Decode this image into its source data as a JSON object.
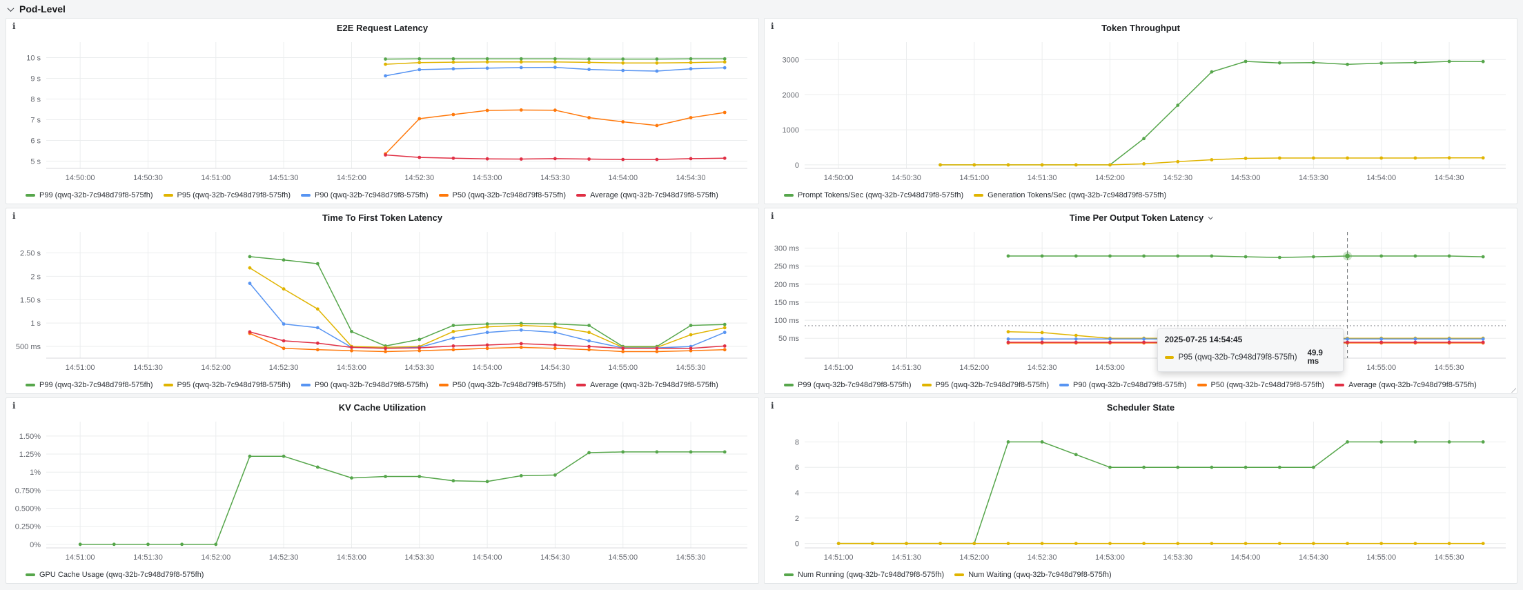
{
  "section": {
    "title": "Pod-Level"
  },
  "colors": {
    "green": "#56a64b",
    "yellow": "#e0b400",
    "blue": "#5794f2",
    "orange": "#ff780a",
    "red": "#e02f44"
  },
  "panels": [
    {
      "id": "e2e-request-latency",
      "title": "E2E Request Latency",
      "x_range": [
        "14:49:45",
        "14:54:55"
      ],
      "x_ticks": [
        "14:50:00",
        "14:50:30",
        "14:51:00",
        "14:51:30",
        "14:52:00",
        "14:52:30",
        "14:53:00",
        "14:53:30",
        "14:54:00",
        "14:54:30"
      ],
      "y_range": [
        4.65,
        10.75
      ],
      "y_ticks": [
        {
          "v": 10,
          "label": "10 s"
        },
        {
          "v": 9,
          "label": "9 s"
        },
        {
          "v": 8,
          "label": "8 s"
        },
        {
          "v": 7,
          "label": "7 s"
        },
        {
          "v": 6,
          "label": "6 s"
        },
        {
          "v": 5,
          "label": "5 s"
        }
      ],
      "chart_data": {
        "type": "line",
        "unit": "seconds",
        "series": [
          {
            "name": "P99 (qwq-32b-7c948d79f8-575fh)",
            "color": "#56a64b",
            "start": "14:52:15",
            "step_s": 15,
            "values": [
              9.93,
              9.94,
              9.94,
              9.94,
              9.94,
              9.94,
              9.93,
              9.93,
              9.93,
              9.94,
              9.94
            ]
          },
          {
            "name": "P95 (qwq-32b-7c948d79f8-575fh)",
            "color": "#e0b400",
            "start": "14:52:15",
            "step_s": 15,
            "values": [
              9.68,
              9.76,
              9.78,
              9.79,
              9.79,
              9.79,
              9.77,
              9.74,
              9.74,
              9.76,
              9.79
            ]
          },
          {
            "name": "P90 (qwq-32b-7c948d79f8-575fh)",
            "color": "#5794f2",
            "start": "14:52:15",
            "step_s": 15,
            "values": [
              9.12,
              9.42,
              9.46,
              9.49,
              9.52,
              9.53,
              9.43,
              9.38,
              9.35,
              9.46,
              9.51
            ]
          },
          {
            "name": "P50 (qwq-32b-7c948d79f8-575fh)",
            "color": "#ff780a",
            "start": "14:52:15",
            "step_s": 15,
            "values": [
              5.35,
              7.05,
              7.25,
              7.45,
              7.47,
              7.46,
              7.1,
              6.9,
              6.72,
              7.1,
              7.35
            ]
          },
          {
            "name": "Average (qwq-32b-7c948d79f8-575fh)",
            "color": "#e02f44",
            "start": "14:52:15",
            "step_s": 15,
            "values": [
              5.3,
              5.18,
              5.14,
              5.11,
              5.1,
              5.12,
              5.1,
              5.08,
              5.08,
              5.12,
              5.14
            ]
          }
        ]
      }
    },
    {
      "id": "token-throughput",
      "title": "Token Throughput",
      "x_range": [
        "14:49:45",
        "14:54:55"
      ],
      "x_ticks": [
        "14:50:00",
        "14:50:30",
        "14:51:00",
        "14:51:30",
        "14:52:00",
        "14:52:30",
        "14:53:00",
        "14:53:30",
        "14:54:00",
        "14:54:30"
      ],
      "y_range": [
        -100,
        3500
      ],
      "y_ticks": [
        {
          "v": 3000,
          "label": "3000"
        },
        {
          "v": 2000,
          "label": "2000"
        },
        {
          "v": 1000,
          "label": "1000"
        },
        {
          "v": 0,
          "label": "0"
        }
      ],
      "chart_data": {
        "type": "line",
        "unit": "tokens/sec",
        "series": [
          {
            "name": "Prompt Tokens/Sec (qwq-32b-7c948d79f8-575fh)",
            "color": "#56a64b",
            "start": "14:50:45",
            "step_s": 15,
            "values": [
              0,
              0,
              0,
              0,
              0,
              0,
              750,
              1700,
              2650,
              2950,
              2905,
              2915,
              2865,
              2900,
              2915,
              2950,
              2945
            ]
          },
          {
            "name": "Generation Tokens/Sec (qwq-32b-7c948d79f8-575fh)",
            "color": "#e0b400",
            "start": "14:50:45",
            "step_s": 15,
            "values": [
              0,
              0,
              0,
              0,
              0,
              0,
              30,
              90,
              145,
              185,
              195,
              195,
              195,
              195,
              195,
              200,
              200
            ]
          }
        ]
      }
    },
    {
      "id": "ttft-latency",
      "title": "Time To First Token Latency",
      "x_range": [
        "14:50:45",
        "14:55:55"
      ],
      "x_ticks": [
        "14:51:00",
        "14:51:30",
        "14:52:00",
        "14:52:30",
        "14:53:00",
        "14:53:30",
        "14:54:00",
        "14:54:30",
        "14:55:00",
        "14:55:30"
      ],
      "y_range": [
        0.25,
        2.95
      ],
      "y_ticks": [
        {
          "v": 2.5,
          "label": "2.50 s"
        },
        {
          "v": 2,
          "label": "2 s"
        },
        {
          "v": 1.5,
          "label": "1.50 s"
        },
        {
          "v": 1,
          "label": "1 s"
        },
        {
          "v": 0.5,
          "label": "500 ms"
        }
      ],
      "chart_data": {
        "type": "line",
        "unit": "seconds",
        "series": [
          {
            "name": "P99 (qwq-32b-7c948d79f8-575fh)",
            "color": "#56a64b",
            "start": "14:52:15",
            "step_s": 15,
            "values": [
              2.42,
              2.35,
              2.27,
              0.82,
              0.51,
              0.65,
              0.95,
              0.98,
              0.99,
              0.98,
              0.95,
              0.5,
              0.5,
              0.95,
              0.97
            ]
          },
          {
            "name": "P95 (qwq-32b-7c948d79f8-575fh)",
            "color": "#e0b400",
            "start": "14:52:15",
            "step_s": 15,
            "values": [
              2.18,
              1.73,
              1.3,
              0.5,
              0.48,
              0.5,
              0.82,
              0.92,
              0.95,
              0.92,
              0.8,
              0.48,
              0.48,
              0.75,
              0.9
            ]
          },
          {
            "name": "P90 (qwq-32b-7c948d79f8-575fh)",
            "color": "#5794f2",
            "start": "14:52:15",
            "step_s": 15,
            "values": [
              1.85,
              0.98,
              0.9,
              0.48,
              0.46,
              0.48,
              0.68,
              0.8,
              0.85,
              0.8,
              0.62,
              0.47,
              0.47,
              0.5,
              0.8
            ]
          },
          {
            "name": "P50 (qwq-32b-7c948d79f8-575fh)",
            "color": "#ff780a",
            "start": "14:52:15",
            "step_s": 15,
            "values": [
              0.78,
              0.46,
              0.43,
              0.41,
              0.39,
              0.41,
              0.43,
              0.46,
              0.48,
              0.46,
              0.43,
              0.39,
              0.39,
              0.41,
              0.43
            ]
          },
          {
            "name": "Average (qwq-32b-7c948d79f8-575fh)",
            "color": "#e02f44",
            "start": "14:52:15",
            "step_s": 15,
            "values": [
              0.81,
              0.62,
              0.57,
              0.48,
              0.46,
              0.47,
              0.51,
              0.53,
              0.56,
              0.53,
              0.5,
              0.46,
              0.46,
              0.46,
              0.51
            ]
          }
        ]
      }
    },
    {
      "id": "tpot-latency",
      "title": "Time Per Output Token Latency",
      "has_caret": true,
      "has_resize_handle": true,
      "x_range": [
        "14:50:45",
        "14:55:55"
      ],
      "x_ticks": [
        "14:51:00",
        "14:51:30",
        "14:52:00",
        "14:52:30",
        "14:53:00",
        "14:53:30",
        "14:54:00",
        "14:54:30",
        "14:55:00",
        "14:55:30"
      ],
      "y_range": [
        -5,
        345
      ],
      "y_ticks": [
        {
          "v": 300,
          "label": "300 ms"
        },
        {
          "v": 250,
          "label": "250 ms"
        },
        {
          "v": 200,
          "label": "200 ms"
        },
        {
          "v": 150,
          "label": "150 ms"
        },
        {
          "v": 100,
          "label": "100 ms"
        },
        {
          "v": 50,
          "label": "50 ms"
        }
      ],
      "crosshair": {
        "time": "14:54:45",
        "y_value": 85,
        "highlight": {
          "series": 0,
          "time": "14:54:45",
          "value": 278
        }
      },
      "tooltip": {
        "title": "2025-07-25 14:54:45",
        "rows": [
          {
            "label": "P95 (qwq-32b-7c948d79f8-575fh)",
            "value": "49.9 ms",
            "color": "#e0b400"
          }
        ]
      },
      "chart_data": {
        "type": "line",
        "unit": "ms",
        "series": [
          {
            "name": "P99 (qwq-32b-7c948d79f8-575fh)",
            "color": "#56a64b",
            "start": "14:52:15",
            "step_s": 15,
            "values": [
              278,
              278,
              278,
              278,
              278,
              278,
              278,
              276,
              274,
              276,
              278,
              278,
              278,
              278,
              276
            ]
          },
          {
            "name": "P95 (qwq-32b-7c948d79f8-575fh)",
            "color": "#e0b400",
            "start": "14:52:15",
            "step_s": 15,
            "values": [
              68,
              66,
              58,
              50,
              50,
              50,
              50,
              50,
              50,
              50,
              49.9,
              50,
              50,
              50,
              50
            ]
          },
          {
            "name": "P90 (qwq-32b-7c948d79f8-575fh)",
            "color": "#5794f2",
            "start": "14:52:15",
            "step_s": 15,
            "values": [
              48,
              48,
              48,
              48,
              48,
              48,
              48,
              48,
              48,
              48,
              48,
              48,
              48,
              48,
              48
            ]
          },
          {
            "name": "P50 (qwq-32b-7c948d79f8-575fh)",
            "color": "#ff780a",
            "start": "14:52:15",
            "step_s": 15,
            "values": [
              37,
              37,
              37,
              37,
              37,
              37,
              37,
              37,
              37,
              37,
              37,
              37,
              37,
              37,
              37
            ]
          },
          {
            "name": "Average (qwq-32b-7c948d79f8-575fh)",
            "color": "#e02f44",
            "start": "14:52:15",
            "step_s": 15,
            "values": [
              39,
              39,
              39,
              39,
              39,
              39,
              39,
              39,
              39,
              39,
              39,
              39,
              39,
              39,
              39
            ]
          }
        ]
      }
    },
    {
      "id": "kv-cache-utilization",
      "title": "KV Cache Utilization",
      "x_range": [
        "14:50:45",
        "14:55:55"
      ],
      "x_ticks": [
        "14:51:00",
        "14:51:30",
        "14:52:00",
        "14:52:30",
        "14:53:00",
        "14:53:30",
        "14:54:00",
        "14:54:30",
        "14:55:00",
        "14:55:30"
      ],
      "y_range": [
        -0.05,
        1.7
      ],
      "y_ticks": [
        {
          "v": 1.5,
          "label": "1.50%"
        },
        {
          "v": 1.25,
          "label": "1.25%"
        },
        {
          "v": 1,
          "label": "1%"
        },
        {
          "v": 0.75,
          "label": "0.750%"
        },
        {
          "v": 0.5,
          "label": "0.500%"
        },
        {
          "v": 0.25,
          "label": "0.250%"
        },
        {
          "v": 0,
          "label": "0%"
        }
      ],
      "chart_data": {
        "type": "line",
        "unit": "percent",
        "series": [
          {
            "name": "GPU Cache Usage (qwq-32b-7c948d79f8-575fh)",
            "color": "#56a64b",
            "start": "14:51:00",
            "step_s": 15,
            "values": [
              0,
              0,
              0,
              0,
              0,
              1.22,
              1.22,
              1.07,
              0.92,
              0.94,
              0.94,
              0.88,
              0.87,
              0.95,
              0.96,
              1.27,
              1.28,
              1.28,
              1.28,
              1.28
            ]
          }
        ]
      }
    },
    {
      "id": "scheduler-state",
      "title": "Scheduler State",
      "x_range": [
        "14:50:45",
        "14:55:55"
      ],
      "x_ticks": [
        "14:51:00",
        "14:51:30",
        "14:52:00",
        "14:52:30",
        "14:53:00",
        "14:53:30",
        "14:54:00",
        "14:54:30",
        "14:55:00",
        "14:55:30"
      ],
      "y_range": [
        -0.35,
        9.6
      ],
      "y_ticks": [
        {
          "v": 8,
          "label": "8"
        },
        {
          "v": 6,
          "label": "6"
        },
        {
          "v": 4,
          "label": "4"
        },
        {
          "v": 2,
          "label": "2"
        },
        {
          "v": 0,
          "label": "0"
        }
      ],
      "chart_data": {
        "type": "line",
        "unit": "requests",
        "series": [
          {
            "name": "Num Running (qwq-32b-7c948d79f8-575fh)",
            "color": "#56a64b",
            "start": "14:51:00",
            "step_s": 15,
            "values": [
              0,
              0,
              0,
              0,
              0,
              8,
              8,
              7,
              6,
              6,
              6,
              6,
              6,
              6,
              6,
              8,
              8,
              8,
              8,
              8
            ]
          },
          {
            "name": "Num Waiting (qwq-32b-7c948d79f8-575fh)",
            "color": "#e0b400",
            "start": "14:51:00",
            "step_s": 15,
            "values": [
              0,
              0,
              0,
              0,
              0,
              0,
              0,
              0,
              0,
              0,
              0,
              0,
              0,
              0,
              0,
              0,
              0,
              0,
              0,
              0
            ]
          }
        ]
      }
    }
  ]
}
